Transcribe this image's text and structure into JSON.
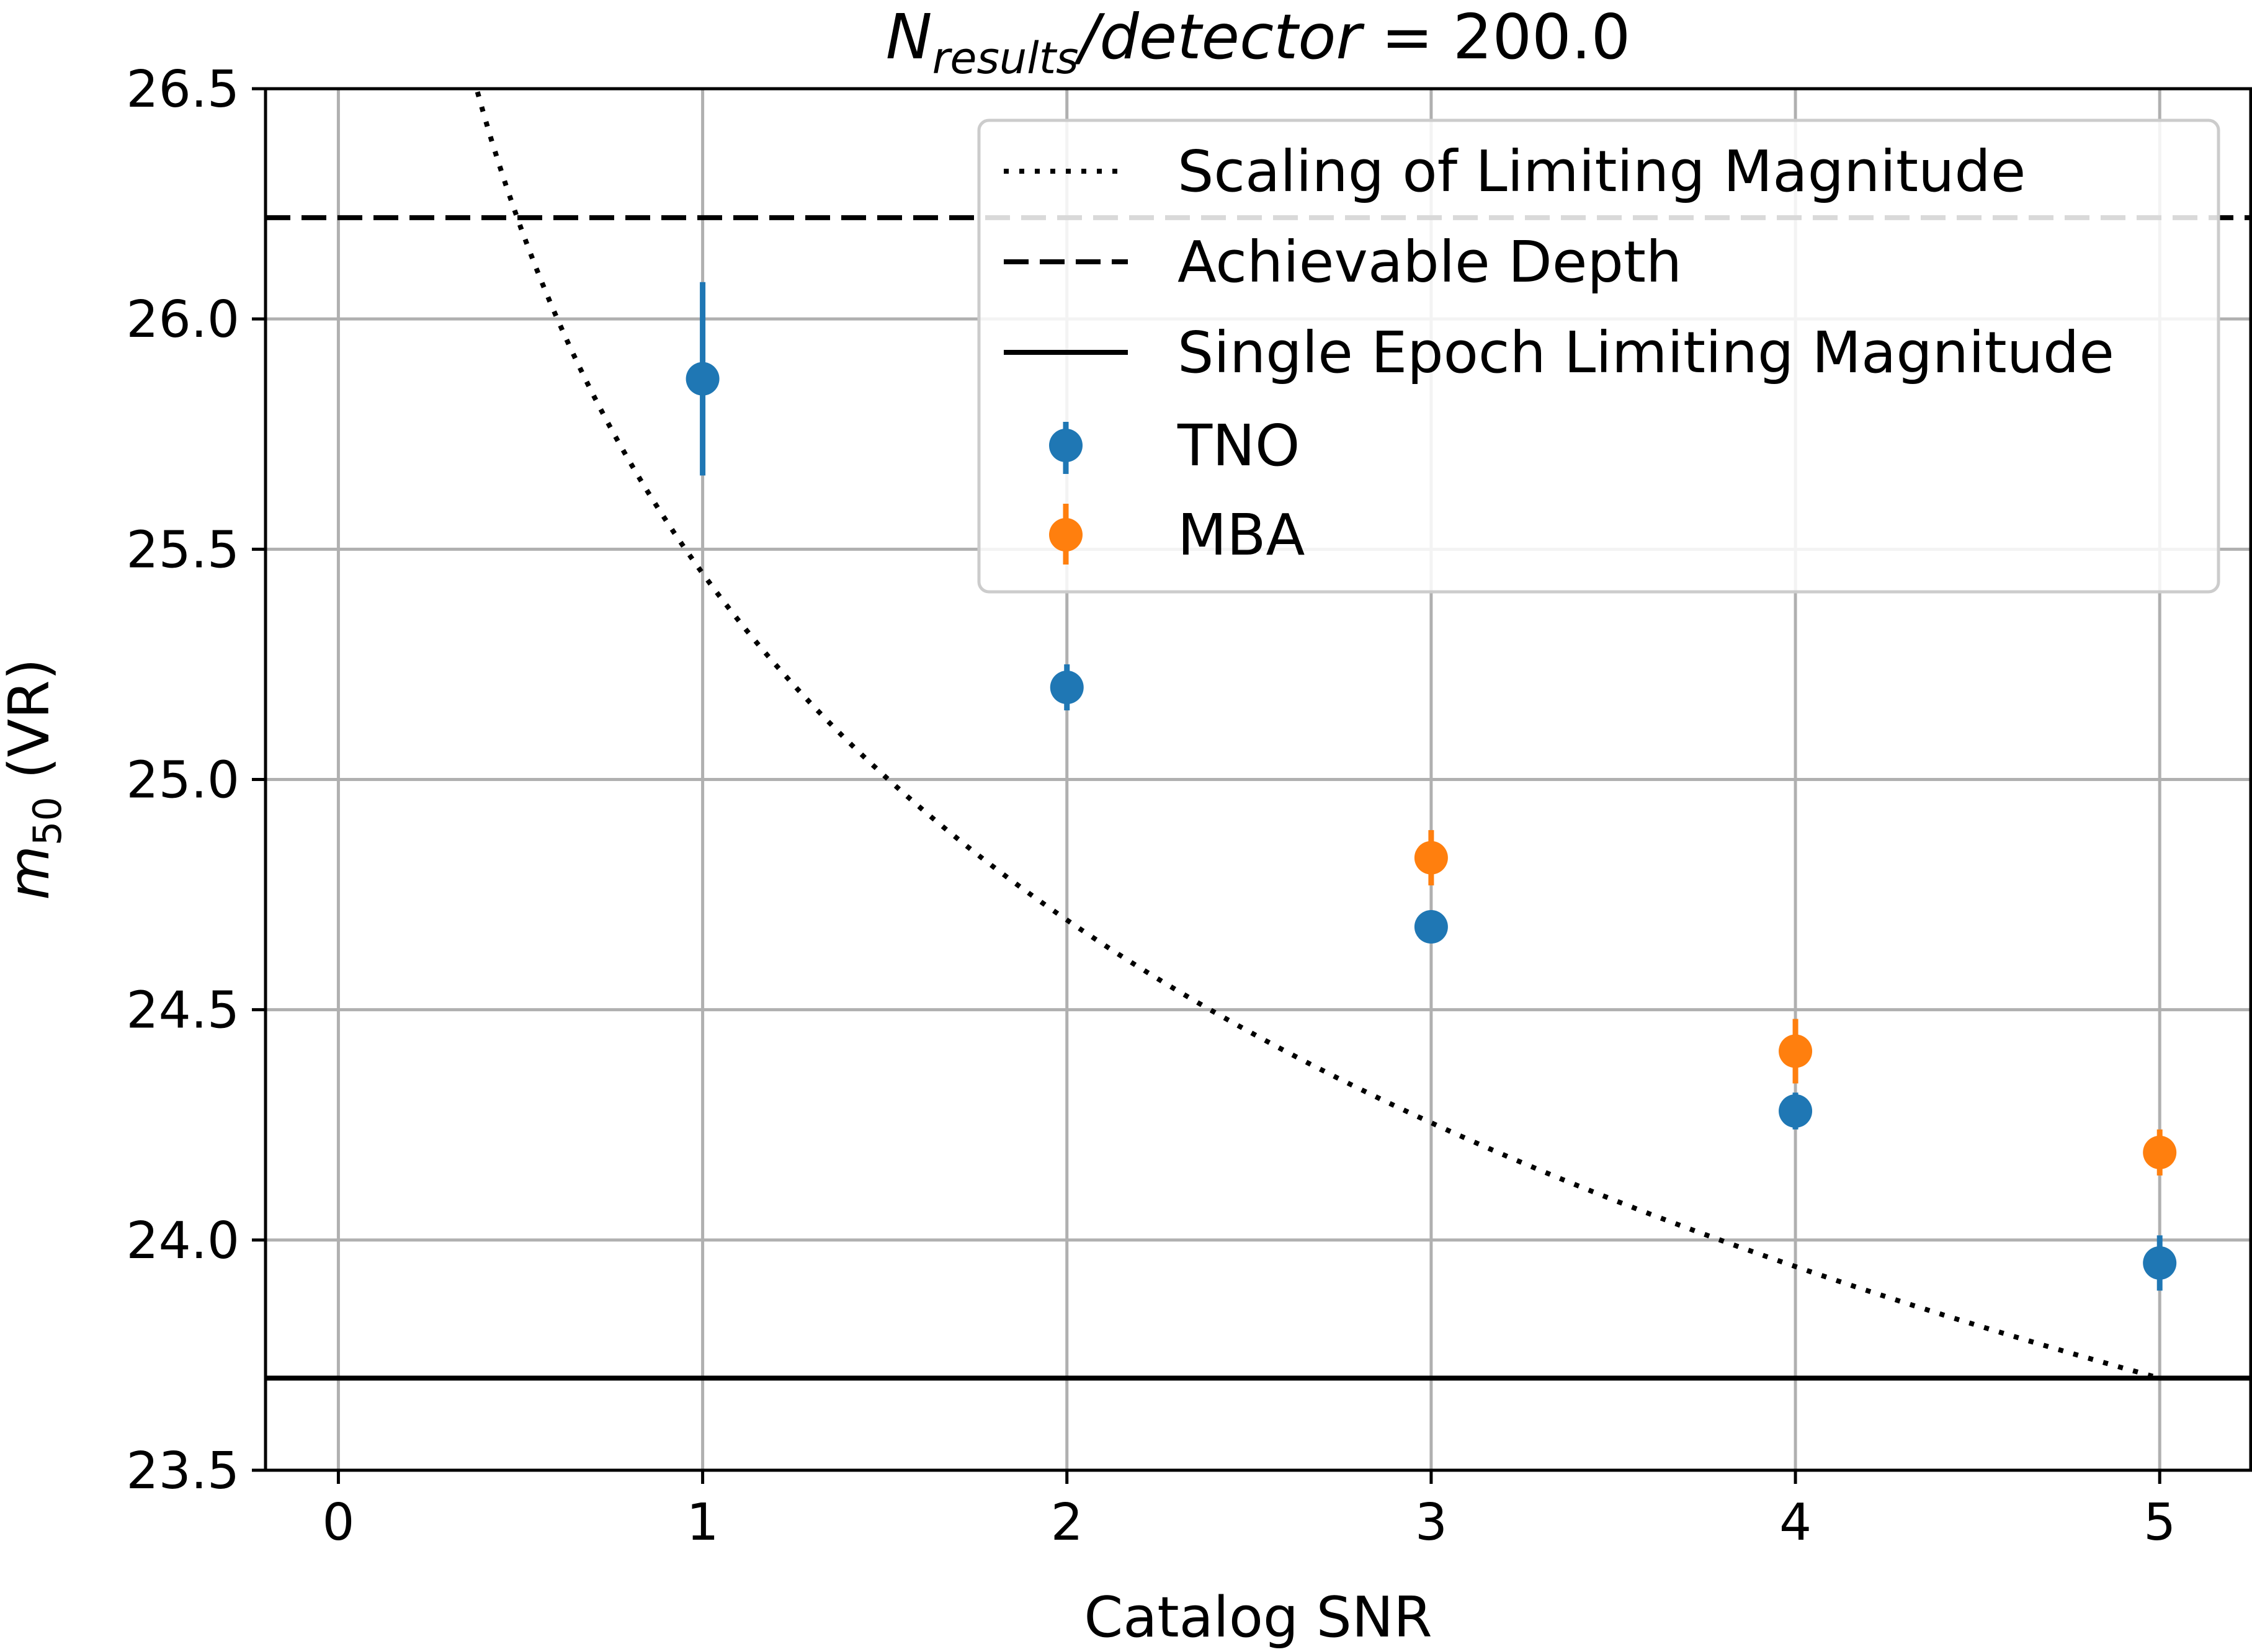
{
  "chart_data": {
    "type": "scatter",
    "title": {
      "main": "N",
      "subscript": "results",
      "rest": "/detector",
      "value": " = 200.0"
    },
    "xlabel": "Catalog SNR",
    "ylabel": {
      "main": "m",
      "subscript": "50",
      "rest": " (VR)"
    },
    "xlim": [
      -0.2,
      5.25
    ],
    "ylim": [
      23.5,
      26.5
    ],
    "xticks": [
      0,
      1,
      2,
      3,
      4,
      5
    ],
    "xtick_labels": [
      "0",
      "1",
      "2",
      "3",
      "4",
      "5"
    ],
    "yticks": [
      23.5,
      24.0,
      24.5,
      25.0,
      25.5,
      26.0,
      26.5
    ],
    "ytick_labels": [
      "23.5",
      "24.0",
      "24.5",
      "25.0",
      "25.5",
      "26.0",
      "26.5"
    ],
    "grid": true,
    "legend_position": "top-right",
    "reference_lines": {
      "scaling": {
        "name": "Scaling of Limiting Magnitude",
        "style": "dotted",
        "color": "#000000",
        "snr_at_single_epoch": 5,
        "magnitude_at_single_epoch": 23.7
      },
      "achievable_depth": {
        "name": "Achievable Depth",
        "style": "dashed",
        "color": "#000000",
        "y": 26.22
      },
      "single_epoch": {
        "name": "Single Epoch Limiting Magnitude",
        "style": "solid",
        "color": "#000000",
        "y": 23.7
      }
    },
    "series": [
      {
        "name": "TNO",
        "color": "#1f77b4",
        "points": [
          {
            "x": 1,
            "y": 25.87,
            "err": 0.21
          },
          {
            "x": 2,
            "y": 25.2,
            "err": 0.05
          },
          {
            "x": 3,
            "y": 24.68,
            "err": 0.02
          },
          {
            "x": 4,
            "y": 24.28,
            "err": 0.04
          },
          {
            "x": 5,
            "y": 23.95,
            "err": 0.06
          }
        ]
      },
      {
        "name": "MBA",
        "color": "#ff7f0e",
        "points": [
          {
            "x": 3,
            "y": 24.83,
            "err": 0.06
          },
          {
            "x": 4,
            "y": 24.41,
            "err": 0.07
          },
          {
            "x": 5,
            "y": 24.19,
            "err": 0.05
          }
        ]
      }
    ]
  }
}
